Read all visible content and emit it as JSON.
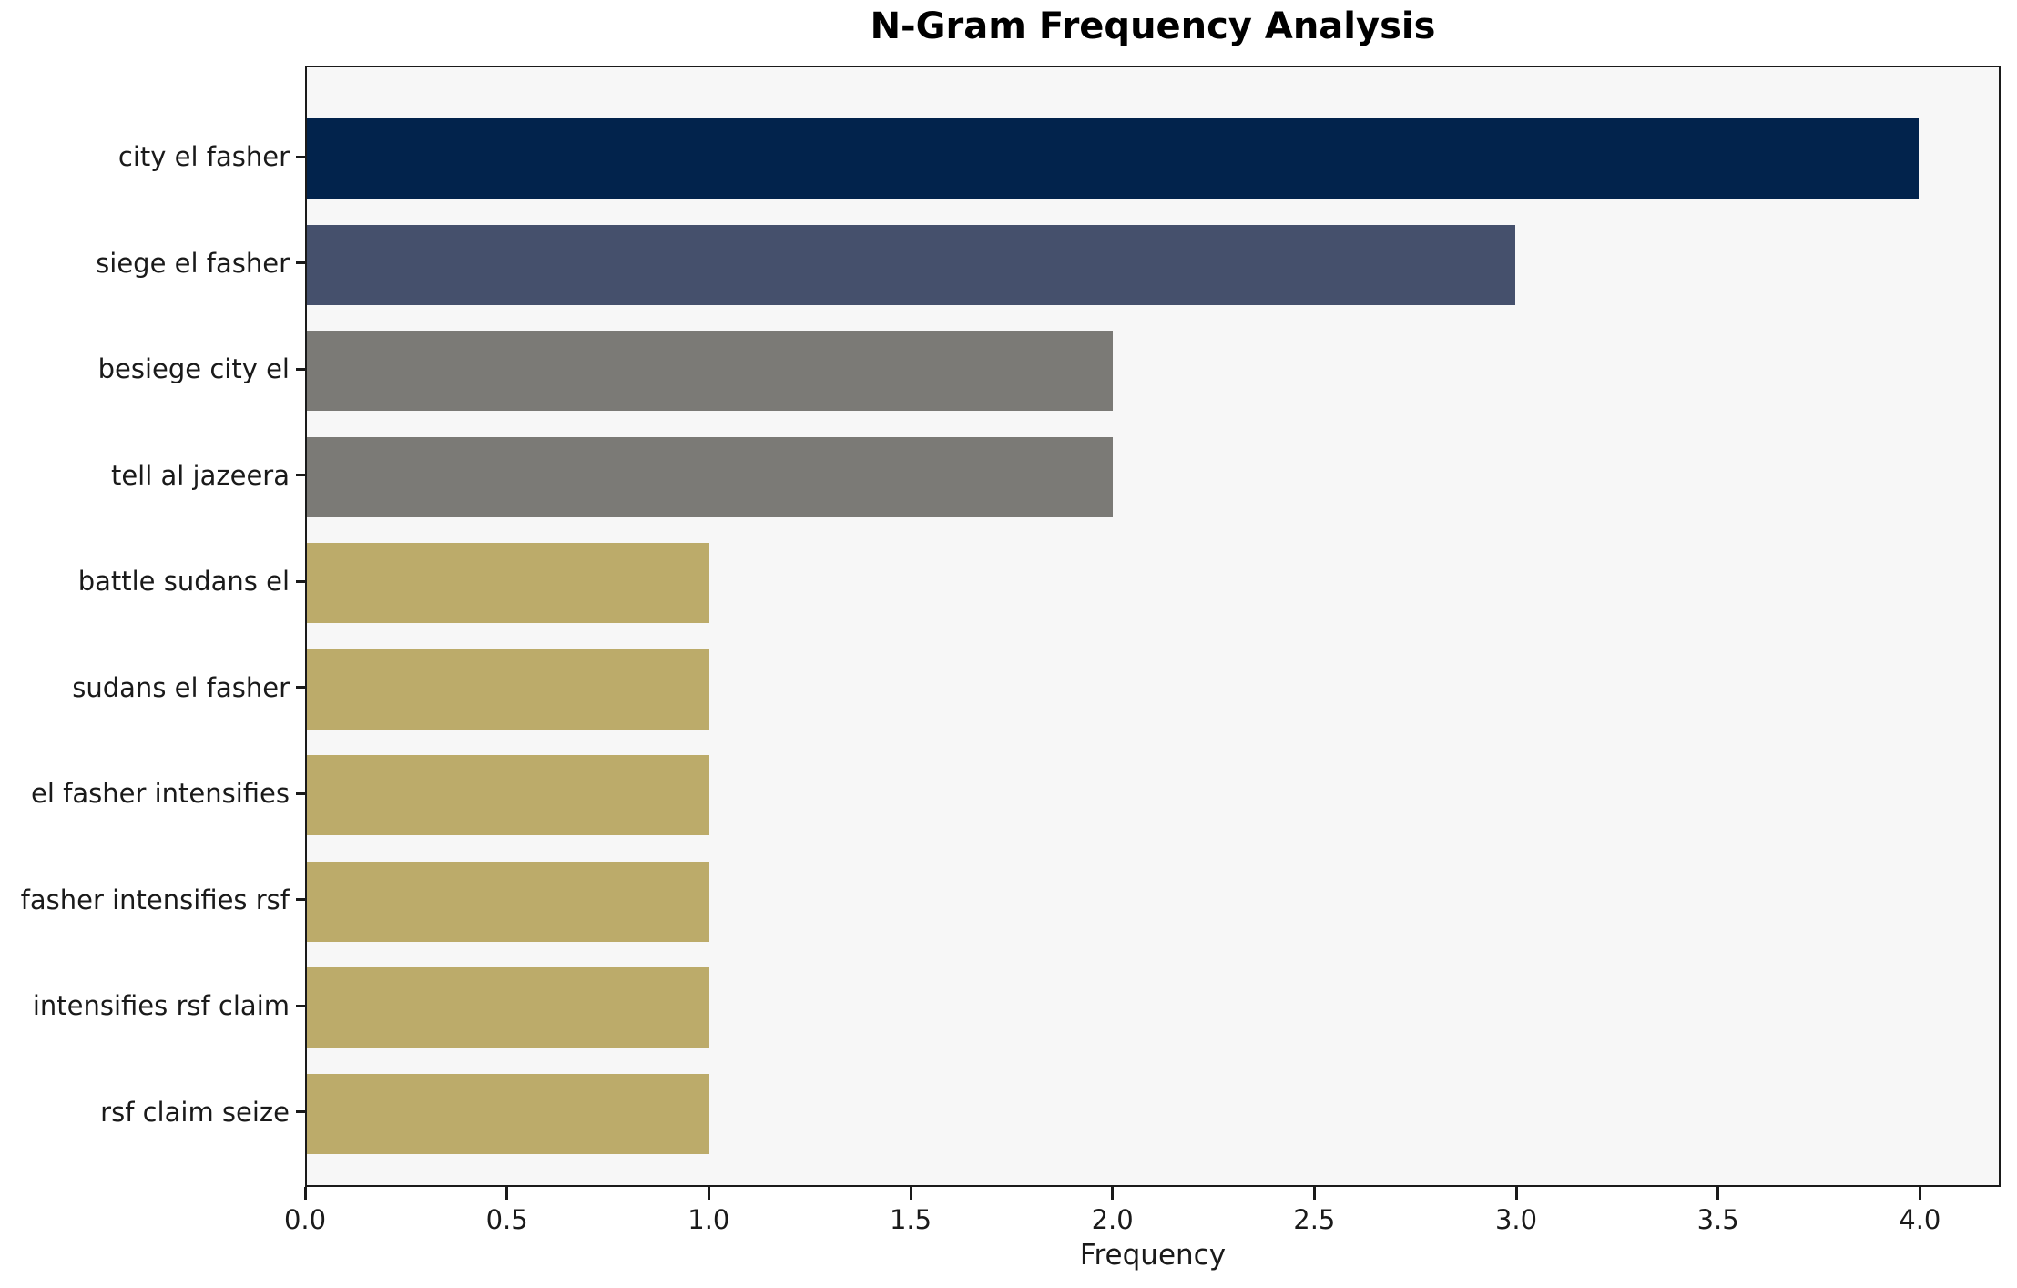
{
  "chart_data": {
    "type": "bar",
    "orientation": "horizontal",
    "title": "N-Gram Frequency Analysis",
    "xlabel": "Frequency",
    "ylabel": "",
    "categories": [
      "city el fasher",
      "siege el fasher",
      "besiege city el",
      "tell al jazeera",
      "battle sudans el",
      "sudans el fasher",
      "el fasher intensifies",
      "fasher intensifies rsf",
      "intensifies rsf claim",
      "rsf claim seize"
    ],
    "values": [
      4,
      3,
      2,
      2,
      1,
      1,
      1,
      1,
      1,
      1
    ],
    "bar_colors": [
      "#02234c",
      "#45506c",
      "#7b7a76",
      "#7b7a76",
      "#bcab6a",
      "#bcab6a",
      "#bcab6a",
      "#bcab6a",
      "#bcab6a",
      "#bcab6a"
    ],
    "xlim": [
      0,
      4.2
    ],
    "x_tick_labels": [
      "0.0",
      "0.5",
      "1.0",
      "1.5",
      "2.0",
      "2.5",
      "3.0",
      "3.5",
      "4.0"
    ],
    "x_tick_values": [
      0,
      0.5,
      1,
      1.5,
      2,
      2.5,
      3,
      3.5,
      4
    ],
    "grid": false,
    "legend_position": "none",
    "plot_background_color": "#f7f7f7",
    "figure_background_color": "#ffffff",
    "spine_color": "#1a1a1a"
  }
}
